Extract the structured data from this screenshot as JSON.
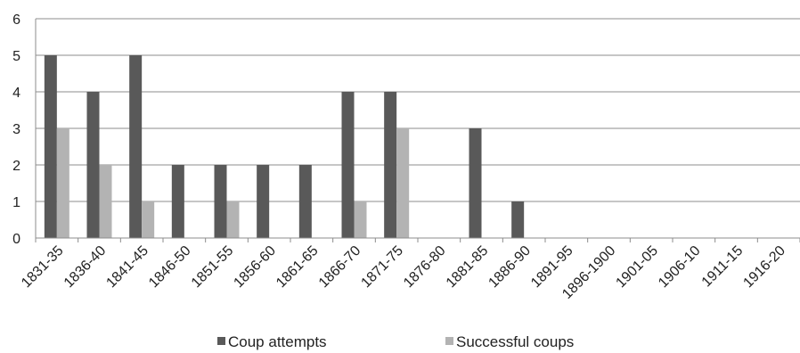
{
  "chart_data": {
    "type": "bar",
    "categories": [
      "1831-35",
      "1836-40",
      "1841-45",
      "1846-50",
      "1851-55",
      "1856-60",
      "1861-65",
      "1866-70",
      "1871-75",
      "1876-80",
      "1881-85",
      "1886-90",
      "1891-95",
      "1896-1900",
      "1901-05",
      "1906-10",
      "1911-15",
      "1916-20"
    ],
    "series": [
      {
        "name": "Coup attempts",
        "color": "#595959",
        "values": [
          5,
          4,
          5,
          2,
          2,
          2,
          2,
          4,
          4,
          0,
          3,
          1,
          0,
          0,
          0,
          0,
          0,
          0
        ]
      },
      {
        "name": "Successful coups",
        "color": "#b3b3b3",
        "values": [
          3,
          2,
          1,
          0,
          1,
          0,
          0,
          1,
          3,
          0,
          0,
          0,
          0,
          0,
          0,
          0,
          0,
          0
        ]
      }
    ],
    "ylim": [
      0,
      6
    ],
    "yticks": [
      "0",
      "1",
      "2",
      "3",
      "4",
      "5",
      "6"
    ],
    "grid": true,
    "legend_position": "bottom"
  }
}
